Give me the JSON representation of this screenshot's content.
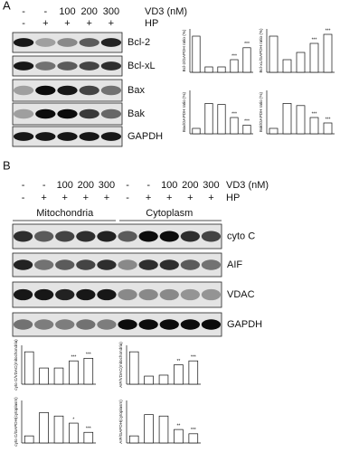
{
  "panel_a": {
    "label": "A",
    "vd3_row": [
      "-",
      "-",
      "100",
      "200",
      "300"
    ],
    "vd3_label": "VD3 (nM)",
    "hp_row": [
      "-",
      "+",
      "+",
      "+",
      "+"
    ],
    "hp_label": "HP",
    "blots": [
      "Bcl-2",
      "Bcl-xL",
      "Bax",
      "Bak",
      "GAPDH"
    ]
  },
  "panel_b": {
    "label": "B",
    "vd3_row": [
      "-",
      "-",
      "100",
      "200",
      "300",
      "-",
      "-",
      "100",
      "200",
      "300"
    ],
    "vd3_label": "VD3 (nM)",
    "hp_row": [
      "-",
      "+",
      "+",
      "+",
      "+",
      "-",
      "+",
      "+",
      "+",
      "+"
    ],
    "hp_label": "HP",
    "groups": [
      "Mitochondria",
      "Cytoplasm"
    ],
    "blots": [
      "cyto C",
      "AIF",
      "VDAC",
      "GAPDH"
    ]
  },
  "chart_data": [
    {
      "type": "bar",
      "y_label": "Bcl-2/GAPDH ratio (%)",
      "values": [
        100,
        15,
        15,
        35,
        68
      ],
      "stars": [
        null,
        null,
        null,
        "***",
        "***"
      ],
      "ylim": [
        0,
        120
      ],
      "color": "#ffffff"
    },
    {
      "type": "bar",
      "y_label": "Bcl-xL/GAPDH ratio (%)",
      "values": [
        100,
        35,
        55,
        80,
        105
      ],
      "stars": [
        null,
        null,
        null,
        "***",
        "***"
      ],
      "ylim": [
        0,
        120
      ],
      "color": "#ffffff"
    },
    {
      "type": "bar",
      "y_label": "Bax/GAPDH ratio (%)",
      "values": [
        100,
        560,
        540,
        300,
        160
      ],
      "stars": [
        null,
        null,
        null,
        "***",
        "***"
      ],
      "ylim": [
        0,
        800
      ],
      "color": "#ffffff"
    },
    {
      "type": "bar",
      "y_label": "Bak/GAPDH ratio (%)",
      "values": [
        100,
        560,
        520,
        300,
        200
      ],
      "stars": [
        null,
        null,
        null,
        "***",
        "***"
      ],
      "ylim": [
        0,
        800
      ],
      "color": "#ffffff"
    },
    {
      "type": "bar",
      "y_label": "cyto C/VDAC(mitochondria)",
      "values": [
        100,
        50,
        50,
        72,
        80
      ],
      "stars": [
        null,
        null,
        null,
        "***",
        "***"
      ],
      "ylim": [
        0,
        120
      ],
      "color": "#ffffff"
    },
    {
      "type": "bar",
      "y_label": "AIF/VDAC(mitochondria)",
      "values": [
        100,
        25,
        28,
        60,
        72
      ],
      "stars": [
        null,
        null,
        null,
        "**",
        "***"
      ],
      "ylim": [
        0,
        120
      ],
      "color": "#ffffff"
    },
    {
      "type": "bar",
      "y_label": "cyto C/GAPDH(cytoplasm)",
      "values": [
        100,
        430,
        380,
        280,
        150
      ],
      "stars": [
        null,
        null,
        null,
        "*",
        "***"
      ],
      "ylim": [
        0,
        600
      ],
      "color": "#ffffff"
    },
    {
      "type": "bar",
      "y_label": "AIF/GAPDH(cytoplasm)",
      "values": [
        100,
        400,
        380,
        190,
        130
      ],
      "stars": [
        null,
        null,
        null,
        "**",
        "***"
      ],
      "ylim": [
        0,
        600
      ],
      "color": "#ffffff"
    }
  ]
}
